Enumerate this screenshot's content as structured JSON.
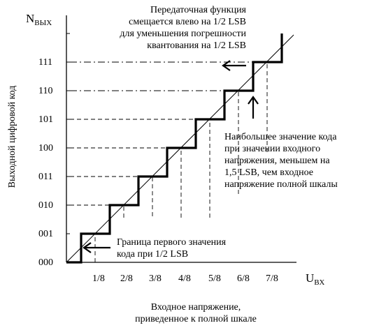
{
  "y_axis_title_main": "N",
  "y_axis_title_sub": "ВЫХ",
  "y_axis_label": "Выходной цифровой код",
  "x_axis_title_main": "U",
  "x_axis_title_sub": "ВХ",
  "x_axis_label_lines": [
    "Входное напряжение,",
    "приведенное к полной шкале"
  ],
  "y_codes": [
    "000",
    "001",
    "010",
    "011",
    "100",
    "101",
    "110",
    "111"
  ],
  "x_ticks": [
    "1/8",
    "2/8",
    "3/8",
    "4/8",
    "5/8",
    "6/8",
    "7/8"
  ],
  "annotation_top_lines": [
    "Передаточная функция",
    "смещается влево на 1/2 LSB",
    "для уменьшения погрешности",
    "квантования на 1/2 LSB"
  ],
  "annotation_right_lines": [
    "Наибольшее значение кода",
    "при значении входного",
    "напряжения, меньшем на",
    "1,5 LSB, чем входное",
    "напряжение полной шкалы"
  ],
  "annotation_bottom_lines": [
    "Граница первого значения",
    "кода при 1/2 LSB"
  ],
  "colors": {
    "line": "#000000",
    "background": "#ffffff"
  }
}
